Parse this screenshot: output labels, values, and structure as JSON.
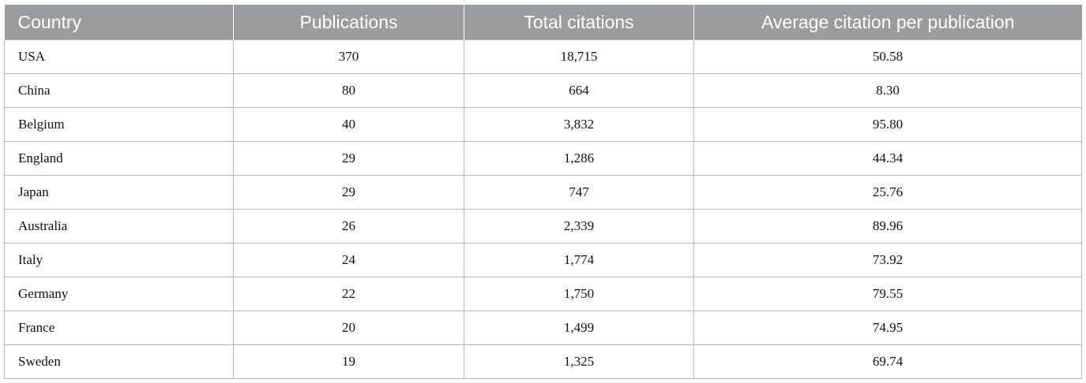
{
  "table": {
    "headers": [
      "Country",
      "Publications",
      "Total citations",
      "Average citation per publication"
    ],
    "rows": [
      {
        "country": "USA",
        "publications": "370",
        "total_citations": "18,715",
        "average": "50.58"
      },
      {
        "country": "China",
        "publications": "80",
        "total_citations": "664",
        "average": "8.30"
      },
      {
        "country": "Belgium",
        "publications": "40",
        "total_citations": "3,832",
        "average": "95.80"
      },
      {
        "country": "England",
        "publications": "29",
        "total_citations": "1,286",
        "average": "44.34"
      },
      {
        "country": "Japan",
        "publications": "29",
        "total_citations": "747",
        "average": "25.76"
      },
      {
        "country": "Australia",
        "publications": "26",
        "total_citations": "2,339",
        "average": "89.96"
      },
      {
        "country": "Italy",
        "publications": "24",
        "total_citations": "1,774",
        "average": "73.92"
      },
      {
        "country": "Germany",
        "publications": "22",
        "total_citations": "1,750",
        "average": "79.55"
      },
      {
        "country": "France",
        "publications": "20",
        "total_citations": "1,499",
        "average": "74.95"
      },
      {
        "country": "Sweden",
        "publications": "19",
        "total_citations": "1,325",
        "average": "69.74"
      }
    ]
  }
}
